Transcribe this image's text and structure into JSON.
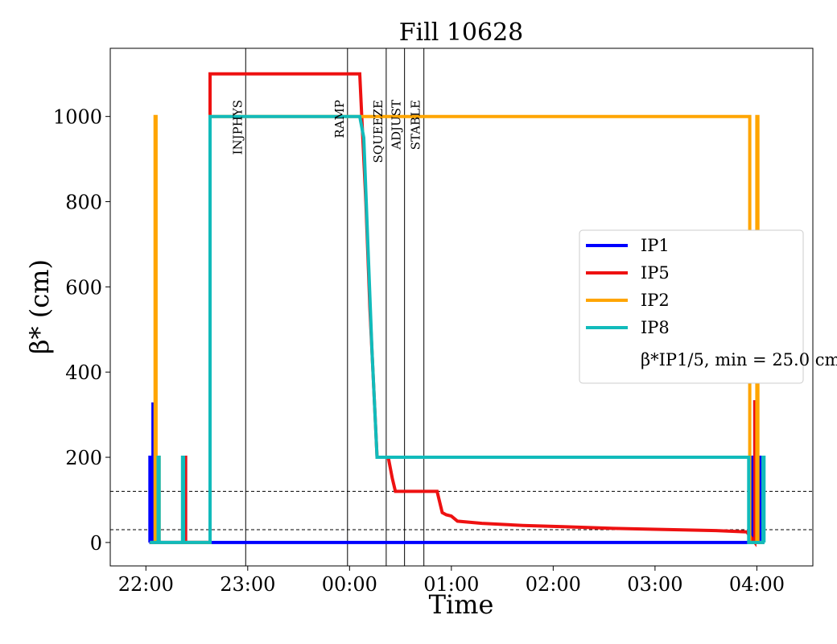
{
  "chart_data": {
    "type": "line",
    "title": "Fill 10628",
    "xlabel": "Time",
    "ylabel": "β* (cm)",
    "x_unit": "hours since 22:00",
    "xlim": [
      -0.35,
      6.55
    ],
    "ylim": [
      -55,
      1160
    ],
    "x_ticks": [
      {
        "value": 0,
        "label": "22:00"
      },
      {
        "value": 1,
        "label": "23:00"
      },
      {
        "value": 2,
        "label": "00:00"
      },
      {
        "value": 3,
        "label": "01:00"
      },
      {
        "value": 4,
        "label": "02:00"
      },
      {
        "value": 5,
        "label": "03:00"
      },
      {
        "value": 6,
        "label": "04:00"
      }
    ],
    "y_ticks": [
      0,
      200,
      400,
      600,
      800,
      1000
    ],
    "grid": false,
    "legend_position": "center-right",
    "legend_note": "β*IP1/5, min = 25.0 cm",
    "phases": [
      {
        "label": "INJPHYS",
        "x": 0.98
      },
      {
        "label": "RAMP",
        "x": 1.98
      },
      {
        "label": "SQUEEZE",
        "x": 2.36
      },
      {
        "label": "ADJUST",
        "x": 2.54
      },
      {
        "label": "STABLE",
        "x": 2.73
      }
    ],
    "hlines": [
      {
        "y": 120,
        "style": "dashed"
      },
      {
        "y": 30,
        "style": "dashed"
      }
    ],
    "series": [
      {
        "name": "IP1",
        "color": "#0000ff",
        "points": [
          [
            0.04,
            0
          ],
          [
            0.04,
            200
          ],
          [
            0.05,
            200
          ],
          [
            0.05,
            0
          ],
          [
            0.07,
            0
          ],
          [
            0.07,
            325
          ],
          [
            0.08,
            325
          ],
          [
            0.08,
            0
          ],
          [
            0.12,
            0
          ],
          [
            0.12,
            0
          ],
          [
            0.38,
            0
          ],
          [
            0.38,
            200
          ],
          [
            0.39,
            200
          ],
          [
            0.39,
            0
          ],
          [
            0.63,
            0
          ],
          [
            5.94,
            0
          ],
          [
            5.94,
            200
          ],
          [
            5.95,
            200
          ],
          [
            5.95,
            0
          ],
          [
            5.98,
            0
          ],
          [
            5.98,
            330
          ],
          [
            5.99,
            330
          ],
          [
            5.99,
            0
          ],
          [
            6.02,
            0
          ],
          [
            6.02,
            200
          ],
          [
            6.03,
            200
          ],
          [
            6.03,
            0
          ],
          [
            6.07,
            0
          ]
        ]
      },
      {
        "name": "IP5",
        "color": "#ee1111",
        "points": [
          [
            0.38,
            0
          ],
          [
            0.38,
            200
          ],
          [
            0.39,
            200
          ],
          [
            0.39,
            0
          ],
          [
            0.63,
            0
          ],
          [
            0.63,
            1100
          ],
          [
            2.1,
            1100
          ],
          [
            2.12,
            1000
          ],
          [
            2.16,
            800
          ],
          [
            2.2,
            550
          ],
          [
            2.25,
            300
          ],
          [
            2.27,
            200
          ],
          [
            2.38,
            200
          ],
          [
            2.42,
            150
          ],
          [
            2.45,
            120
          ],
          [
            2.86,
            120
          ],
          [
            2.91,
            70
          ],
          [
            2.95,
            65
          ],
          [
            3.0,
            62
          ],
          [
            3.06,
            50
          ],
          [
            3.3,
            45
          ],
          [
            3.7,
            40
          ],
          [
            4.1,
            37
          ],
          [
            4.6,
            33
          ],
          [
            5.0,
            31
          ],
          [
            5.6,
            28
          ],
          [
            5.9,
            25
          ],
          [
            5.98,
            0
          ],
          [
            5.98,
            330
          ],
          [
            5.99,
            330
          ],
          [
            5.99,
            0
          ]
        ]
      },
      {
        "name": "IP2",
        "color": "#ffa500",
        "points": [
          [
            0.04,
            0
          ],
          [
            0.09,
            0
          ],
          [
            0.09,
            1000
          ],
          [
            0.1,
            1000
          ],
          [
            0.1,
            0
          ],
          [
            0.12,
            0
          ],
          [
            0.12,
            200
          ],
          [
            0.13,
            200
          ],
          [
            0.13,
            0
          ],
          [
            0.63,
            0
          ],
          [
            0.63,
            1000
          ],
          [
            5.93,
            1000
          ],
          [
            5.93,
            0
          ],
          [
            6.0,
            0
          ],
          [
            6.0,
            1000
          ],
          [
            6.01,
            1000
          ],
          [
            6.01,
            0
          ],
          [
            6.07,
            0
          ]
        ]
      },
      {
        "name": "IP8",
        "color": "#11bbbb",
        "points": [
          [
            0.04,
            0
          ],
          [
            0.12,
            0
          ],
          [
            0.12,
            200
          ],
          [
            0.13,
            200
          ],
          [
            0.13,
            0
          ],
          [
            0.36,
            0
          ],
          [
            0.36,
            200
          ],
          [
            0.37,
            200
          ],
          [
            0.37,
            0
          ],
          [
            0.63,
            0
          ],
          [
            0.63,
            1000
          ],
          [
            2.1,
            1000
          ],
          [
            2.14,
            950
          ],
          [
            2.18,
            700
          ],
          [
            2.22,
            450
          ],
          [
            2.27,
            200
          ],
          [
            5.92,
            200
          ],
          [
            5.92,
            0
          ],
          [
            6.06,
            0
          ],
          [
            6.06,
            200
          ],
          [
            6.07,
            200
          ],
          [
            6.07,
            0
          ]
        ]
      }
    ]
  }
}
